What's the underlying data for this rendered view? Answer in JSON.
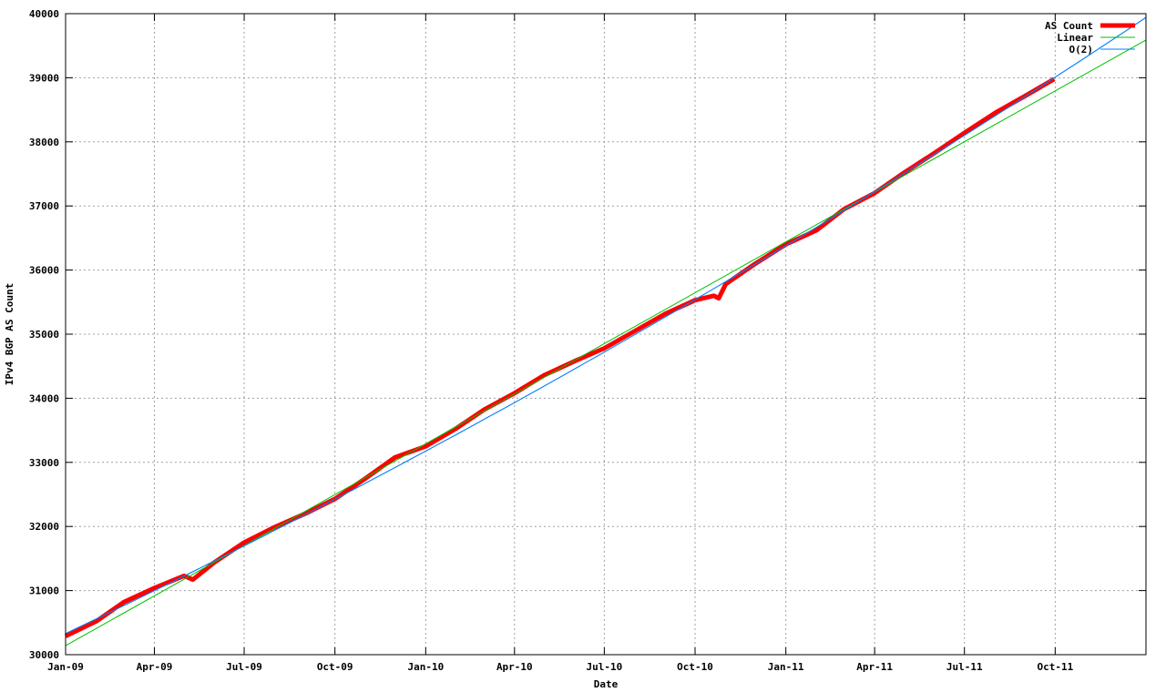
{
  "chart_data": {
    "type": "line",
    "title": "",
    "xlabel": "Date",
    "ylabel": "IPv4 BGP AS Count",
    "xlim": [
      "2009-01-01",
      "2012-01-01"
    ],
    "ylim": [
      30000,
      40000
    ],
    "grid": true,
    "legend_placement": "top-right",
    "x_ticks": [
      {
        "date": "2009-01-01",
        "label": "Jan-09"
      },
      {
        "date": "2009-04-01",
        "label": "Apr-09"
      },
      {
        "date": "2009-07-01",
        "label": "Jul-09"
      },
      {
        "date": "2009-10-01",
        "label": "Oct-09"
      },
      {
        "date": "2010-01-01",
        "label": "Jan-10"
      },
      {
        "date": "2010-04-01",
        "label": "Apr-10"
      },
      {
        "date": "2010-07-01",
        "label": "Jul-10"
      },
      {
        "date": "2010-10-01",
        "label": "Oct-10"
      },
      {
        "date": "2011-01-01",
        "label": "Jan-11"
      },
      {
        "date": "2011-04-01",
        "label": "Apr-11"
      },
      {
        "date": "2011-07-01",
        "label": "Jul-11"
      },
      {
        "date": "2011-10-01",
        "label": "Oct-11"
      }
    ],
    "y_ticks": [
      "30000",
      "31000",
      "32000",
      "33000",
      "34000",
      "35000",
      "36000",
      "37000",
      "38000",
      "39000",
      "40000"
    ],
    "series": [
      {
        "name": "AS Count",
        "color": "#ff0000",
        "points": [
          [
            "2009-01-01",
            30290
          ],
          [
            "2009-02-01",
            30520
          ],
          [
            "2009-03-01",
            30820
          ],
          [
            "2009-04-01",
            31040
          ],
          [
            "2009-05-01",
            31230
          ],
          [
            "2009-05-10",
            31170
          ],
          [
            "2009-06-01",
            31440
          ],
          [
            "2009-07-01",
            31750
          ],
          [
            "2009-08-01",
            31990
          ],
          [
            "2009-09-01",
            32200
          ],
          [
            "2009-10-01",
            32430
          ],
          [
            "2009-11-01",
            32750
          ],
          [
            "2009-12-01",
            33080
          ],
          [
            "2010-01-01",
            33250
          ],
          [
            "2010-02-01",
            33530
          ],
          [
            "2010-03-01",
            33820
          ],
          [
            "2010-04-01",
            34080
          ],
          [
            "2010-05-01",
            34360
          ],
          [
            "2010-06-01",
            34580
          ],
          [
            "2010-07-01",
            34780
          ],
          [
            "2010-08-01",
            35050
          ],
          [
            "2010-09-01",
            35320
          ],
          [
            "2010-10-01",
            35530
          ],
          [
            "2010-10-20",
            35600
          ],
          [
            "2010-10-25",
            35560
          ],
          [
            "2010-11-01",
            35780
          ],
          [
            "2010-12-01",
            36100
          ],
          [
            "2011-01-01",
            36400
          ],
          [
            "2011-02-01",
            36620
          ],
          [
            "2011-03-01",
            36950
          ],
          [
            "2011-04-01",
            37200
          ],
          [
            "2011-05-01",
            37520
          ],
          [
            "2011-06-01",
            37830
          ],
          [
            "2011-07-01",
            38140
          ],
          [
            "2011-08-01",
            38450
          ],
          [
            "2011-09-01",
            38720
          ],
          [
            "2011-09-30",
            38980
          ]
        ]
      },
      {
        "name": "Linear",
        "color": "#00c000",
        "points": [
          [
            "2009-01-01",
            30140
          ],
          [
            "2012-01-01",
            39590
          ]
        ]
      },
      {
        "name": "O(2)",
        "color": "#0080ff",
        "points": [
          [
            "2009-01-01",
            30330
          ],
          [
            "2010-07-01",
            34720
          ],
          [
            "2012-01-01",
            39940
          ]
        ]
      }
    ]
  }
}
